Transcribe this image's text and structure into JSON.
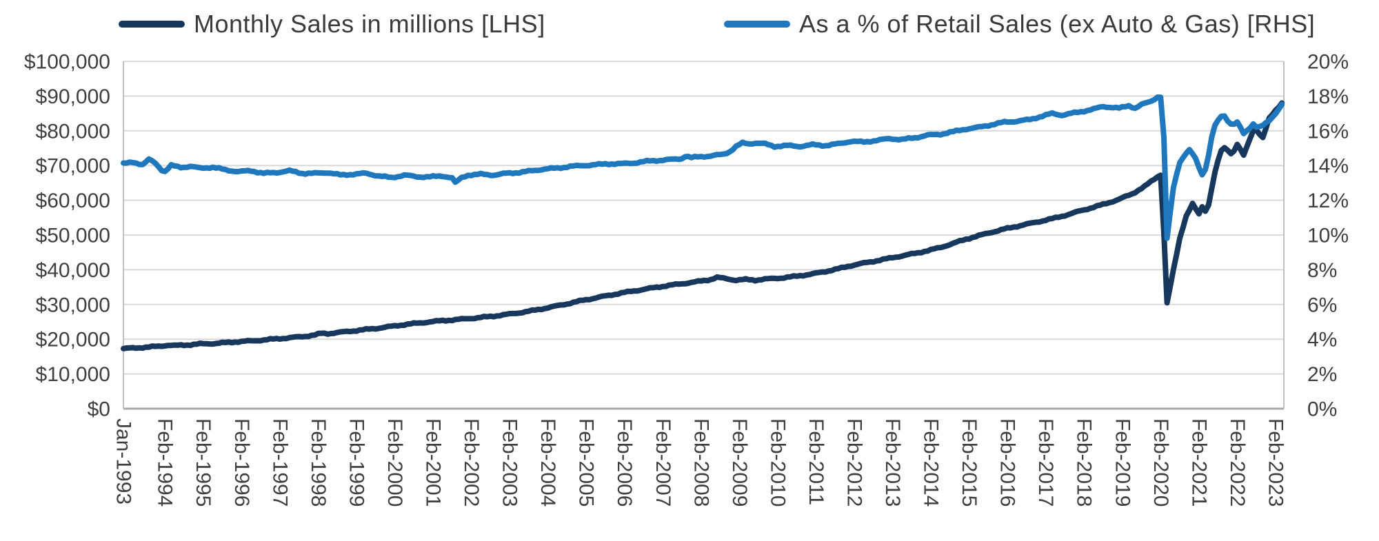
{
  "legend": {
    "items": [
      {
        "label": "Monthly Sales in millions [LHS]",
        "color": "#17375d"
      },
      {
        "label": "As a % of Retail Sales (ex Auto & Gas) [RHS]",
        "color": "#1f78be"
      }
    ]
  },
  "colors": {
    "text": "#3f3f3f",
    "gridline": "#d9d9d9",
    "axis_border": "#c0c0c0",
    "axis_bottom": "#a8a8a8",
    "background": "#ffffff"
  },
  "chart_data": {
    "type": "line",
    "title": "",
    "grid": {
      "horizontal": true,
      "vertical": false
    },
    "legend_position": "top",
    "x_axis": {
      "rotation_deg": 90,
      "domain_years": [
        1993.0,
        2023.3
      ],
      "tick_labels": [
        "Jan-1993",
        "Feb-1994",
        "Feb-1995",
        "Feb-1996",
        "Feb-1997",
        "Feb-1998",
        "Feb-1999",
        "Feb-2000",
        "Feb-2001",
        "Feb-2002",
        "Feb-2003",
        "Feb-2004",
        "Feb-2005",
        "Feb-2006",
        "Feb-2007",
        "Feb-2008",
        "Feb-2009",
        "Feb-2010",
        "Feb-2011",
        "Feb-2012",
        "Feb-2013",
        "Feb-2014",
        "Feb-2015",
        "Feb-2016",
        "Feb-2017",
        "Feb-2018",
        "Feb-2019",
        "Feb-2020",
        "Feb-2021",
        "Feb-2022",
        "Feb-2023"
      ]
    },
    "y_axis_left": {
      "min": 0,
      "max": 100000,
      "tick_labels": [
        "$100,000",
        "$90,000",
        "$80,000",
        "$70,000",
        "$60,000",
        "$50,000",
        "$40,000",
        "$30,000",
        "$20,000",
        "$10,000",
        "$0"
      ]
    },
    "y_axis_right": {
      "min": 0,
      "max": 20,
      "tick_labels": [
        "20%",
        "18%",
        "16%",
        "14%",
        "12%",
        "10%",
        "8%",
        "6%",
        "4%",
        "2%",
        "0%"
      ]
    },
    "series": [
      {
        "name": "Monthly Sales in millions [LHS]",
        "axis": "left",
        "color": "#17375d",
        "line_width": 8,
        "monthly_noise": 220,
        "points_year_value": [
          [
            1993.0,
            17300
          ],
          [
            1993.33,
            17500
          ],
          [
            1993.67,
            17750
          ],
          [
            1994.0,
            18050
          ],
          [
            1994.17,
            18300
          ],
          [
            1994.33,
            18150
          ],
          [
            1994.67,
            18350
          ],
          [
            1995.0,
            18650
          ],
          [
            1995.33,
            18750
          ],
          [
            1995.67,
            19000
          ],
          [
            1996.0,
            19300
          ],
          [
            1996.33,
            19500
          ],
          [
            1996.67,
            19800
          ],
          [
            1997.0,
            20100
          ],
          [
            1997.33,
            20400
          ],
          [
            1997.67,
            20750
          ],
          [
            1998.0,
            21200
          ],
          [
            1998.17,
            21700
          ],
          [
            1998.33,
            21600
          ],
          [
            1998.67,
            22000
          ],
          [
            1999.0,
            22400
          ],
          [
            1999.33,
            22800
          ],
          [
            1999.67,
            23200
          ],
          [
            2000.0,
            23700
          ],
          [
            2000.33,
            24200
          ],
          [
            2000.67,
            24600
          ],
          [
            2001.0,
            25000
          ],
          [
            2001.33,
            25350
          ],
          [
            2001.67,
            25600
          ],
          [
            2002.0,
            25950
          ],
          [
            2002.33,
            26250
          ],
          [
            2002.67,
            26650
          ],
          [
            2003.0,
            27100
          ],
          [
            2003.33,
            27600
          ],
          [
            2003.67,
            28200
          ],
          [
            2004.0,
            28900
          ],
          [
            2004.33,
            29600
          ],
          [
            2004.67,
            30400
          ],
          [
            2005.0,
            31200
          ],
          [
            2005.33,
            31900
          ],
          [
            2005.67,
            32600
          ],
          [
            2006.0,
            33300
          ],
          [
            2006.33,
            33900
          ],
          [
            2006.67,
            34500
          ],
          [
            2007.0,
            35100
          ],
          [
            2007.33,
            35600
          ],
          [
            2007.67,
            36100
          ],
          [
            2008.0,
            36600
          ],
          [
            2008.33,
            37200
          ],
          [
            2008.5,
            37800
          ],
          [
            2008.75,
            37400
          ],
          [
            2009.0,
            37000
          ],
          [
            2009.25,
            37200
          ],
          [
            2009.5,
            37000
          ],
          [
            2009.75,
            37300
          ],
          [
            2010.0,
            37500
          ],
          [
            2010.33,
            37800
          ],
          [
            2010.67,
            38300
          ],
          [
            2011.0,
            38800
          ],
          [
            2011.33,
            39500
          ],
          [
            2011.67,
            40300
          ],
          [
            2012.0,
            41200
          ],
          [
            2012.33,
            41900
          ],
          [
            2012.67,
            42600
          ],
          [
            2013.0,
            43300
          ],
          [
            2013.33,
            44000
          ],
          [
            2013.67,
            44700
          ],
          [
            2014.0,
            45500
          ],
          [
            2014.33,
            46400
          ],
          [
            2014.67,
            47600
          ],
          [
            2015.0,
            48800
          ],
          [
            2015.33,
            49800
          ],
          [
            2015.67,
            50800
          ],
          [
            2016.0,
            51700
          ],
          [
            2016.33,
            52500
          ],
          [
            2016.67,
            53300
          ],
          [
            2017.0,
            54100
          ],
          [
            2017.33,
            54900
          ],
          [
            2017.67,
            55900
          ],
          [
            2018.0,
            57000
          ],
          [
            2018.33,
            58000
          ],
          [
            2018.67,
            59100
          ],
          [
            2019.0,
            60300
          ],
          [
            2019.33,
            61800
          ],
          [
            2019.67,
            64000
          ],
          [
            2020.0,
            66800
          ],
          [
            2020.08,
            68000
          ],
          [
            2020.17,
            50000
          ],
          [
            2020.25,
            30400
          ],
          [
            2020.42,
            40000
          ],
          [
            2020.58,
            49000
          ],
          [
            2020.75,
            55500
          ],
          [
            2020.92,
            59000
          ],
          [
            2021.08,
            55900
          ],
          [
            2021.17,
            58300
          ],
          [
            2021.29,
            56300
          ],
          [
            2021.42,
            63600
          ],
          [
            2021.54,
            70000
          ],
          [
            2021.71,
            75600
          ],
          [
            2021.96,
            73200
          ],
          [
            2022.08,
            76200
          ],
          [
            2022.25,
            72900
          ],
          [
            2022.5,
            80200
          ],
          [
            2022.58,
            80300
          ],
          [
            2022.75,
            77900
          ],
          [
            2022.92,
            83600
          ],
          [
            2023.08,
            85900
          ],
          [
            2023.25,
            88000
          ]
        ]
      },
      {
        "name": "As a % of Retail Sales (ex Auto & Gas) [RHS]",
        "axis": "right",
        "color": "#1f78be",
        "line_width": 8,
        "monthly_noise": 0.05,
        "points_year_value": [
          [
            1993.0,
            14.1
          ],
          [
            1993.25,
            14.2
          ],
          [
            1993.5,
            14.05
          ],
          [
            1993.67,
            14.35
          ],
          [
            1993.83,
            14.15
          ],
          [
            1994.0,
            13.75
          ],
          [
            1994.08,
            13.65
          ],
          [
            1994.25,
            14.0
          ],
          [
            1994.5,
            13.9
          ],
          [
            1994.75,
            13.95
          ],
          [
            1995.0,
            13.85
          ],
          [
            1995.33,
            13.9
          ],
          [
            1995.67,
            13.75
          ],
          [
            1996.0,
            13.65
          ],
          [
            1996.33,
            13.7
          ],
          [
            1996.67,
            13.55
          ],
          [
            1997.0,
            13.6
          ],
          [
            1997.33,
            13.7
          ],
          [
            1997.67,
            13.55
          ],
          [
            1998.0,
            13.55
          ],
          [
            1998.33,
            13.6
          ],
          [
            1998.67,
            13.45
          ],
          [
            1999.0,
            13.5
          ],
          [
            1999.33,
            13.55
          ],
          [
            1999.67,
            13.4
          ],
          [
            2000.0,
            13.3
          ],
          [
            2000.33,
            13.45
          ],
          [
            2000.67,
            13.35
          ],
          [
            2001.0,
            13.35
          ],
          [
            2001.33,
            13.4
          ],
          [
            2001.58,
            13.3
          ],
          [
            2001.67,
            13.0
          ],
          [
            2001.83,
            13.3
          ],
          [
            2002.0,
            13.45
          ],
          [
            2002.33,
            13.5
          ],
          [
            2002.67,
            13.45
          ],
          [
            2003.0,
            13.55
          ],
          [
            2003.33,
            13.6
          ],
          [
            2003.67,
            13.7
          ],
          [
            2004.0,
            13.8
          ],
          [
            2004.33,
            13.85
          ],
          [
            2004.67,
            13.95
          ],
          [
            2005.0,
            14.0
          ],
          [
            2005.33,
            14.05
          ],
          [
            2005.67,
            14.1
          ],
          [
            2006.0,
            14.1
          ],
          [
            2006.33,
            14.15
          ],
          [
            2006.67,
            14.25
          ],
          [
            2007.0,
            14.3
          ],
          [
            2007.33,
            14.35
          ],
          [
            2007.58,
            14.4
          ],
          [
            2007.67,
            14.55
          ],
          [
            2007.83,
            14.45
          ],
          [
            2008.0,
            14.5
          ],
          [
            2008.33,
            14.55
          ],
          [
            2008.67,
            14.65
          ],
          [
            2008.83,
            14.8
          ],
          [
            2009.0,
            15.1
          ],
          [
            2009.17,
            15.3
          ],
          [
            2009.33,
            15.25
          ],
          [
            2009.5,
            15.3
          ],
          [
            2009.75,
            15.25
          ],
          [
            2010.0,
            15.1
          ],
          [
            2010.33,
            15.15
          ],
          [
            2010.67,
            15.1
          ],
          [
            2011.0,
            15.2
          ],
          [
            2011.33,
            15.15
          ],
          [
            2011.67,
            15.25
          ],
          [
            2012.0,
            15.4
          ],
          [
            2012.33,
            15.35
          ],
          [
            2012.67,
            15.45
          ],
          [
            2013.0,
            15.55
          ],
          [
            2013.33,
            15.5
          ],
          [
            2013.67,
            15.6
          ],
          [
            2014.0,
            15.75
          ],
          [
            2014.33,
            15.8
          ],
          [
            2014.67,
            15.95
          ],
          [
            2015.0,
            16.1
          ],
          [
            2015.33,
            16.2
          ],
          [
            2015.67,
            16.35
          ],
          [
            2016.0,
            16.5
          ],
          [
            2016.33,
            16.55
          ],
          [
            2016.67,
            16.65
          ],
          [
            2017.0,
            16.85
          ],
          [
            2017.25,
            17.0
          ],
          [
            2017.5,
            16.9
          ],
          [
            2017.75,
            17.0
          ],
          [
            2018.0,
            17.1
          ],
          [
            2018.33,
            17.25
          ],
          [
            2018.58,
            17.4
          ],
          [
            2018.83,
            17.35
          ],
          [
            2019.0,
            17.3
          ],
          [
            2019.25,
            17.45
          ],
          [
            2019.42,
            17.3
          ],
          [
            2019.58,
            17.5
          ],
          [
            2019.83,
            17.7
          ],
          [
            2020.0,
            17.95
          ],
          [
            2020.08,
            18.05
          ],
          [
            2020.17,
            15.5
          ],
          [
            2020.25,
            9.8
          ],
          [
            2020.42,
            12.8
          ],
          [
            2020.58,
            14.2
          ],
          [
            2020.75,
            14.7
          ],
          [
            2020.83,
            14.9
          ],
          [
            2021.0,
            14.4
          ],
          [
            2021.08,
            13.9
          ],
          [
            2021.17,
            13.5
          ],
          [
            2021.29,
            13.9
          ],
          [
            2021.37,
            15.2
          ],
          [
            2021.5,
            16.3
          ],
          [
            2021.71,
            17.0
          ],
          [
            2021.83,
            16.6
          ],
          [
            2021.96,
            16.3
          ],
          [
            2022.08,
            16.5
          ],
          [
            2022.25,
            15.85
          ],
          [
            2022.33,
            16.0
          ],
          [
            2022.5,
            16.4
          ],
          [
            2022.62,
            16.15
          ],
          [
            2022.75,
            16.3
          ],
          [
            2022.92,
            16.6
          ],
          [
            2023.08,
            17.0
          ],
          [
            2023.25,
            17.5
          ]
        ]
      }
    ]
  }
}
